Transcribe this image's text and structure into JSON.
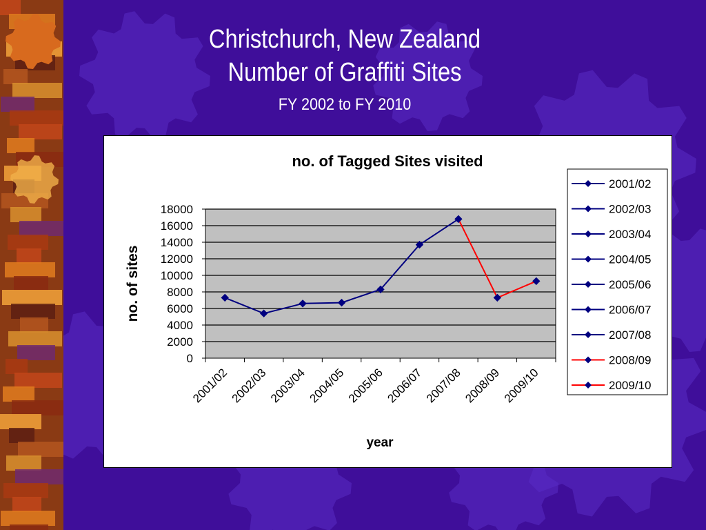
{
  "slide": {
    "title_line1": "Christchurch, New Zealand",
    "title_line2": "Number of Graffiti Sites",
    "subtitle": "FY 2002 to FY 2010"
  },
  "colors": {
    "background": "#3f0e9a",
    "series_blue": "#000080",
    "series_red": "#ff0000",
    "plot_area": "#c0c0c0"
  },
  "chart_data": {
    "type": "line",
    "title": "no. of Tagged Sites visited",
    "xlabel": "year",
    "ylabel": "no. of sites",
    "categories": [
      "2001/02",
      "2002/03",
      "2003/04",
      "2004/05",
      "2005/06",
      "2006/07",
      "2007/08",
      "2008/09",
      "2009/10"
    ],
    "values": [
      7300,
      5400,
      6600,
      6700,
      8300,
      13700,
      16800,
      7300,
      9300
    ],
    "segment_colors": [
      "blue",
      "blue",
      "blue",
      "blue",
      "blue",
      "blue",
      "red",
      "red"
    ],
    "ylim": [
      0,
      18000
    ],
    "yticks": [
      0,
      2000,
      4000,
      6000,
      8000,
      10000,
      12000,
      14000,
      16000,
      18000
    ],
    "grid": true,
    "legend": {
      "placement": "right",
      "entries": [
        {
          "label": "2001/02",
          "color": "blue"
        },
        {
          "label": "2002/03",
          "color": "blue"
        },
        {
          "label": "2003/04",
          "color": "blue"
        },
        {
          "label": "2004/05",
          "color": "blue"
        },
        {
          "label": "2005/06",
          "color": "blue"
        },
        {
          "label": "2006/07",
          "color": "blue"
        },
        {
          "label": "2007/08",
          "color": "blue"
        },
        {
          "label": "2008/09",
          "color": "red"
        },
        {
          "label": "2009/10",
          "color": "red"
        }
      ]
    }
  }
}
